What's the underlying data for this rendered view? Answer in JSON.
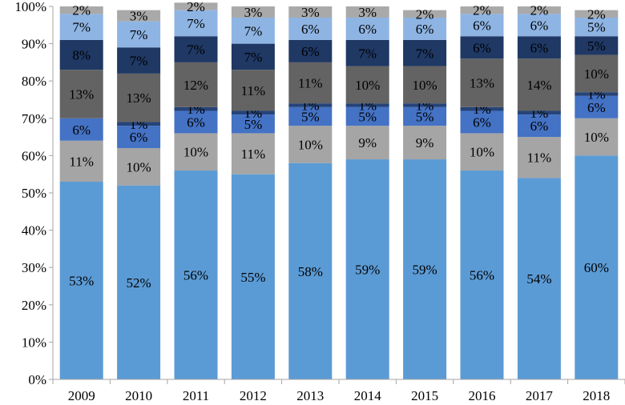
{
  "chart_data": {
    "type": "bar",
    "stacked": true,
    "percent_stacked": true,
    "title": "",
    "xlabel": "",
    "ylabel": "",
    "ylim": [
      0,
      100
    ],
    "y_ticks": [
      "0%",
      "10%",
      "20%",
      "30%",
      "40%",
      "50%",
      "60%",
      "70%",
      "80%",
      "90%",
      "100%"
    ],
    "categories": [
      "2009",
      "2010",
      "2011",
      "2012",
      "2013",
      "2014",
      "2015",
      "2016",
      "2017",
      "2018"
    ],
    "grid": false,
    "legend": "none",
    "series": [
      {
        "color": "#5b9bd5",
        "values": [
          53,
          52,
          56,
          55,
          58,
          59,
          59,
          56,
          54,
          60
        ]
      },
      {
        "color": "#a5a5a5",
        "values": [
          11,
          10,
          10,
          11,
          10,
          9,
          9,
          10,
          11,
          10
        ]
      },
      {
        "color": "#4472c4",
        "values": [
          6,
          6,
          6,
          5,
          5,
          5,
          5,
          6,
          6,
          6
        ]
      },
      {
        "color": "#264478",
        "values": [
          0,
          1,
          1,
          1,
          1,
          1,
          1,
          1,
          1,
          1
        ]
      },
      {
        "color": "#636363",
        "values": [
          13,
          13,
          12,
          11,
          11,
          10,
          10,
          13,
          14,
          10
        ]
      },
      {
        "color": "#1f3864",
        "values": [
          8,
          7,
          7,
          7,
          6,
          7,
          7,
          6,
          6,
          5
        ]
      },
      {
        "color": "#8eb4e3",
        "values": [
          7,
          7,
          7,
          7,
          6,
          6,
          6,
          6,
          6,
          5
        ]
      },
      {
        "color": "#a9a9a9",
        "values": [
          2,
          3,
          2,
          3,
          3,
          3,
          2,
          2,
          2,
          2
        ]
      }
    ]
  }
}
